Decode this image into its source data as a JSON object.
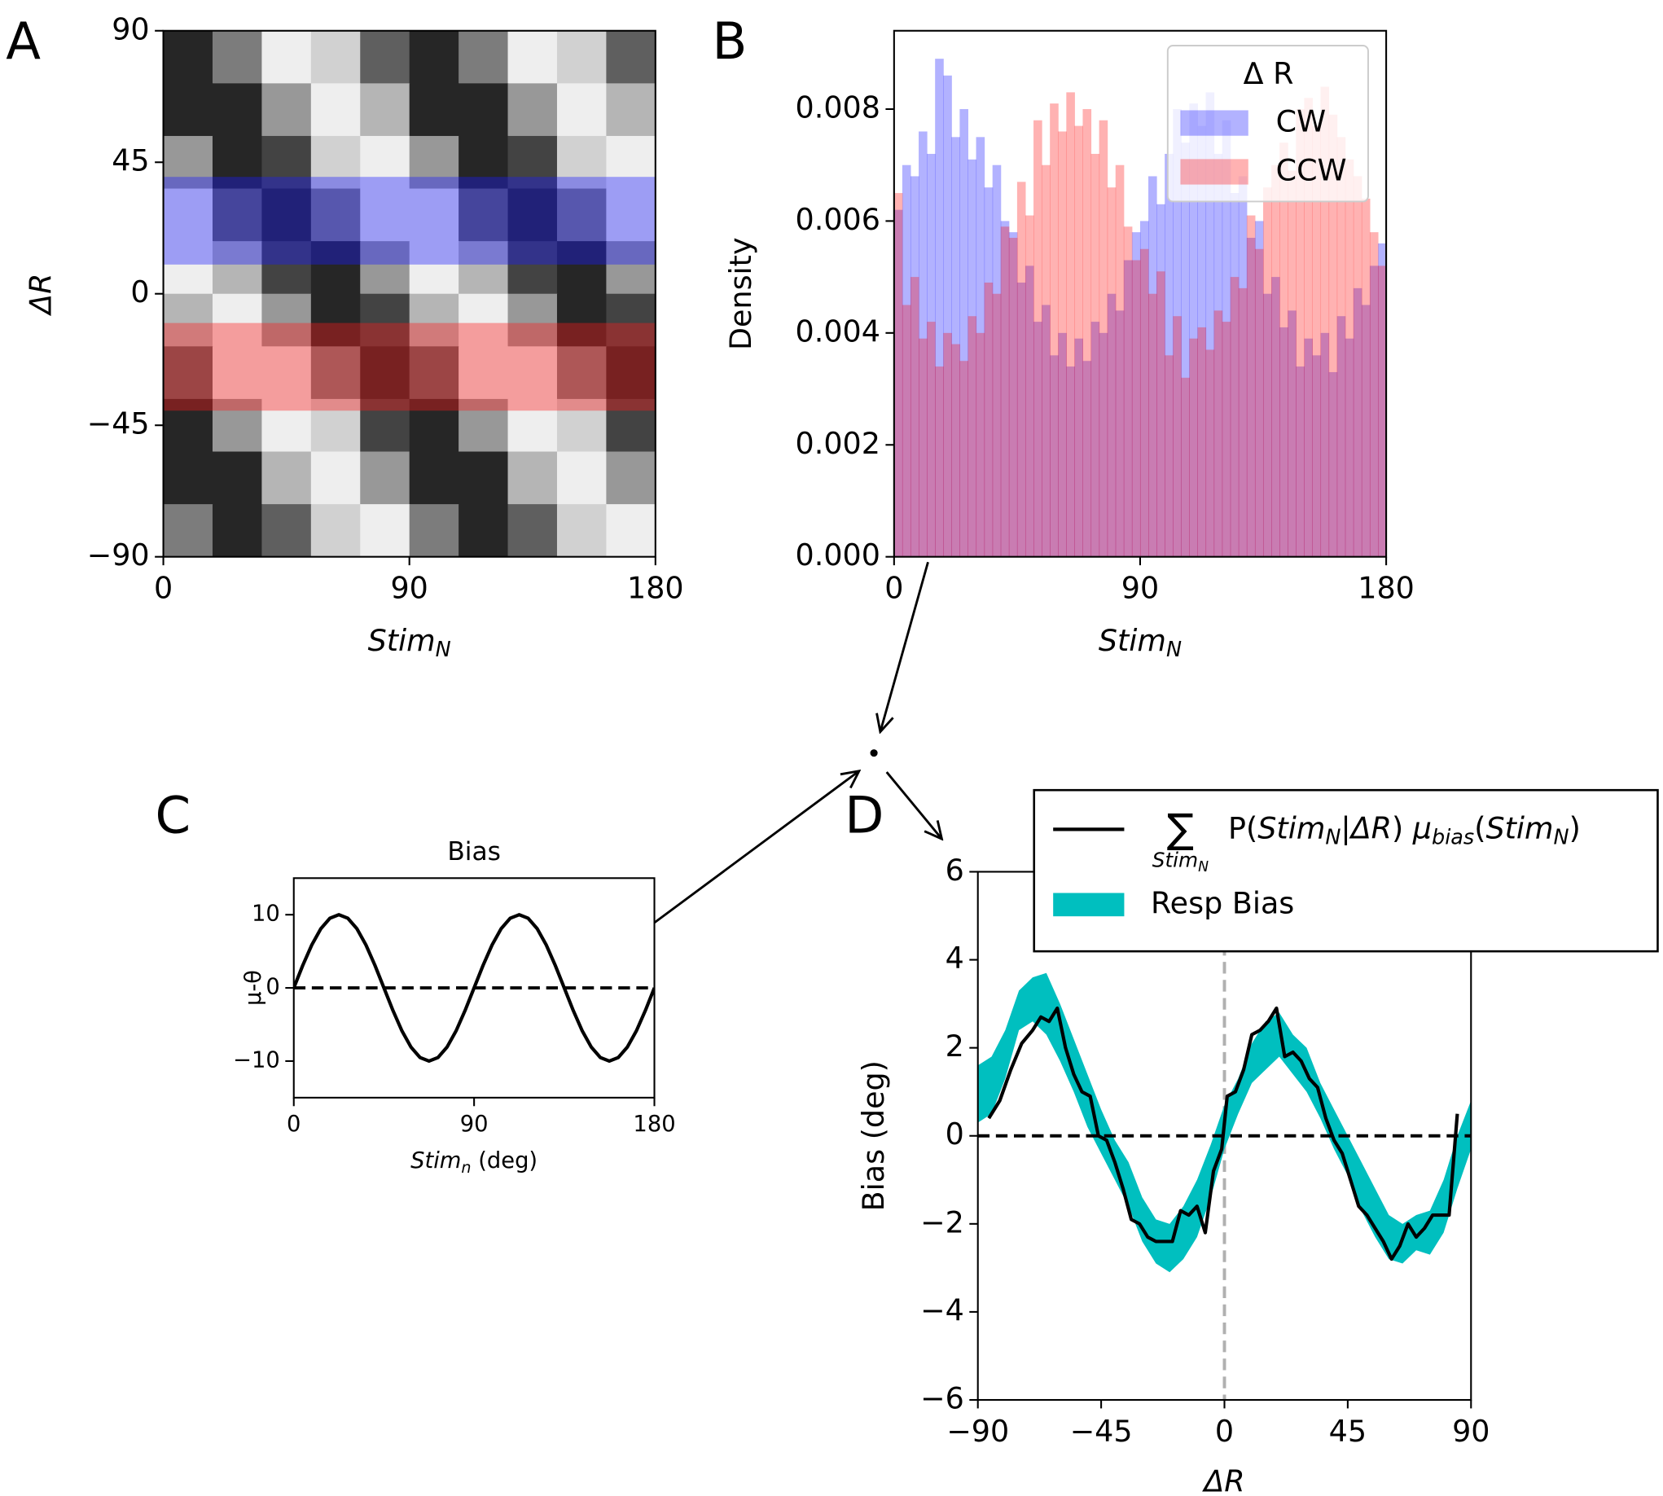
{
  "chart_data": [
    {
      "type": "contour",
      "label": "A",
      "x": [
        9,
        27,
        45,
        63,
        81,
        99,
        117,
        135,
        153,
        171
      ],
      "y": [
        81,
        63,
        45,
        27,
        9,
        -9,
        -27,
        -45,
        -63,
        -81
      ],
      "z": [
        [
          0.01,
          0.44,
          0.95,
          0.84,
          0.26,
          0.01,
          0.44,
          0.95,
          0.84,
          0.26
        ],
        [
          0.12,
          0.08,
          0.62,
          1.0,
          0.68,
          0.12,
          0.08,
          0.62,
          1.0,
          0.68
        ],
        [
          0.5,
          0.02,
          0.21,
          0.79,
          0.98,
          0.5,
          0.02,
          0.21,
          0.79,
          0.98
        ],
        [
          0.89,
          0.32,
          0.0,
          0.38,
          0.92,
          0.89,
          0.32,
          0.0,
          0.38,
          0.92
        ],
        [
          0.99,
          0.74,
          0.16,
          0.05,
          0.56,
          0.99,
          0.74,
          0.16,
          0.05,
          0.56
        ],
        [
          0.74,
          0.99,
          0.56,
          0.05,
          0.16,
          0.74,
          0.99,
          0.56,
          0.05,
          0.16
        ],
        [
          0.32,
          0.89,
          0.92,
          0.38,
          0.0,
          0.32,
          0.89,
          0.92,
          0.38,
          0.0
        ],
        [
          0.02,
          0.5,
          0.98,
          0.79,
          0.21,
          0.02,
          0.5,
          0.98,
          0.79,
          0.21
        ],
        [
          0.08,
          0.12,
          0.68,
          1.0,
          0.62,
          0.08,
          0.12,
          0.68,
          1.0,
          0.62
        ],
        [
          0.44,
          0.01,
          0.26,
          0.84,
          0.95,
          0.44,
          0.01,
          0.26,
          0.84,
          0.95
        ]
      ],
      "bands": [
        {
          "ylim": [
            10,
            40
          ],
          "color": "#1a1aff"
        },
        {
          "ylim": [
            -40,
            -10
          ],
          "color": "#ff1a1a"
        }
      ],
      "xlim": [
        0,
        180
      ],
      "ylim": [
        -90,
        90
      ],
      "xticks": [
        0,
        90,
        180
      ],
      "yticks": [
        {
          "value": -90,
          "label": "−90"
        },
        {
          "value": -45,
          "label": "−45"
        },
        0,
        45,
        90
      ],
      "xlabel": [
        [
          "Stim",
          "i"
        ],
        [
          "N",
          "sub"
        ]
      ],
      "ylabel": "ΔR"
    },
    {
      "type": "histogram",
      "label": "B",
      "bins": [
        0,
        3,
        6,
        9,
        12,
        15,
        18,
        21,
        24,
        27,
        30,
        33,
        36,
        39,
        42,
        45,
        48,
        51,
        54,
        57,
        60,
        63,
        66,
        69,
        72,
        75,
        78,
        81,
        84,
        87,
        90,
        93,
        96,
        99,
        102,
        105,
        108,
        111,
        114,
        117,
        120,
        123,
        126,
        129,
        132,
        135,
        138,
        141,
        144,
        147,
        150,
        153,
        156,
        159,
        162,
        165,
        168,
        171,
        174,
        177,
        180
      ],
      "series": [
        {
          "name": "CW",
          "color": "#0000ff",
          "values": [
            0.0062,
            0.007,
            0.0068,
            0.0076,
            0.0072,
            0.0089,
            0.0086,
            0.0075,
            0.008,
            0.0071,
            0.0075,
            0.0066,
            0.007,
            0.006,
            0.0058,
            0.0049,
            0.0052,
            0.0042,
            0.0045,
            0.0036,
            0.004,
            0.0034,
            0.0039,
            0.0035,
            0.0042,
            0.004,
            0.0047,
            0.0044,
            0.0053,
            0.0058,
            0.006,
            0.0068,
            0.0063,
            0.0072,
            0.008,
            0.0074,
            0.0081,
            0.0077,
            0.0083,
            0.0072,
            0.0078,
            0.0065,
            0.0068,
            0.0057,
            0.006,
            0.0047,
            0.005,
            0.0041,
            0.0044,
            0.0034,
            0.0039,
            0.0036,
            0.004,
            0.0033,
            0.0043,
            0.0039,
            0.0048,
            0.0045,
            0.0052,
            0.0056
          ]
        },
        {
          "name": "CCW",
          "color": "#ff0000",
          "values": [
            0.0065,
            0.0045,
            0.005,
            0.0039,
            0.0042,
            0.0034,
            0.004,
            0.0038,
            0.0035,
            0.0043,
            0.004,
            0.0049,
            0.0047,
            0.0059,
            0.0057,
            0.0067,
            0.0061,
            0.0078,
            0.007,
            0.0081,
            0.0076,
            0.0083,
            0.0077,
            0.008,
            0.0072,
            0.0078,
            0.0066,
            0.007,
            0.0059,
            0.0053,
            0.0055,
            0.0047,
            0.0051,
            0.0036,
            0.0043,
            0.0032,
            0.0039,
            0.0041,
            0.0037,
            0.0044,
            0.0042,
            0.005,
            0.0048,
            0.0061,
            0.0055,
            0.0066,
            0.007,
            0.0074,
            0.0069,
            0.008,
            0.0082,
            0.0077,
            0.0084,
            0.0079,
            0.0075,
            0.0071,
            0.0068,
            0.0064,
            0.0058,
            0.0052
          ]
        }
      ],
      "alpha": 0.3,
      "legend_title": "Δ R",
      "xlim": [
        0,
        180
      ],
      "ylim": [
        0,
        0.0094
      ],
      "xticks": [
        0,
        90,
        180
      ],
      "yticks": [
        {
          "value": 0,
          "label": "0.000"
        },
        {
          "value": 0.002,
          "label": "0.002"
        },
        {
          "value": 0.004,
          "label": "0.004"
        },
        {
          "value": 0.006,
          "label": "0.006"
        },
        {
          "value": 0.008,
          "label": "0.008"
        }
      ],
      "xlabel": [
        [
          "Stim",
          "i"
        ],
        [
          "N",
          "sub"
        ]
      ],
      "ylabel": "Density"
    },
    {
      "type": "line",
      "label": "C",
      "title": "Bias",
      "x": [
        0,
        4.5,
        9,
        13.5,
        18,
        22.5,
        27,
        31.5,
        36,
        40.5,
        45,
        49.5,
        54,
        58.5,
        63,
        67.5,
        72,
        76.5,
        81,
        85.5,
        90,
        94.5,
        99,
        103.5,
        108,
        112.5,
        117,
        121.5,
        126,
        130.5,
        135,
        139.5,
        144,
        148.5,
        153,
        157.5,
        162,
        166.5,
        171,
        175.5,
        180
      ],
      "values": [
        0,
        3.09,
        5.88,
        8.09,
        9.51,
        10,
        9.51,
        8.09,
        5.88,
        3.09,
        0,
        -3.09,
        -5.88,
        -8.09,
        -9.51,
        -10,
        -9.51,
        -8.09,
        -5.88,
        -3.09,
        0,
        3.09,
        5.88,
        8.09,
        9.51,
        10,
        9.51,
        8.09,
        5.88,
        3.09,
        0,
        -3.09,
        -5.88,
        -8.09,
        -9.51,
        -10,
        -9.51,
        -8.09,
        -5.88,
        -3.09,
        0
      ],
      "color": "#000000",
      "hline": 0,
      "hline_color": "#000000",
      "xlim": [
        0,
        180
      ],
      "ylim": [
        -15,
        15
      ],
      "xticks": [
        0,
        90,
        180
      ],
      "yticks": [
        {
          "value": -10,
          "label": "−10"
        },
        0,
        10
      ],
      "xlabel": [
        [
          "Stim",
          "i"
        ],
        [
          "n",
          "sub"
        ],
        [
          " (deg)",
          "normal"
        ]
      ],
      "ylabel": "μ-θ"
    },
    {
      "type": "line",
      "label": "D",
      "series": [
        {
          "kind": "line",
          "color": "#000000",
          "sum": "∑",
          "sum_sub": [
            [
              "Stim",
              "i"
            ],
            [
              "N",
              "sub"
            ]
          ],
          "name": [
            [
              "P(",
              "normal"
            ],
            [
              "Stim",
              "i"
            ],
            [
              "N",
              "sub"
            ],
            [
              "|",
              "normal"
            ],
            [
              "ΔR",
              "i"
            ],
            [
              ") ",
              "normal"
            ],
            [
              "μ",
              "i"
            ],
            [
              "bias",
              "sub"
            ],
            [
              "(",
              "normal"
            ],
            [
              "Stim",
              "i"
            ],
            [
              "N",
              "sub"
            ],
            [
              ")",
              "normal"
            ]
          ],
          "x": [
            -86,
            -82,
            -78,
            -74,
            -70,
            -67,
            -64,
            -61,
            -58,
            -55,
            -52,
            -49,
            -46,
            -43,
            -40,
            -37,
            -34,
            -31,
            -28,
            -25,
            -22,
            -19,
            -16,
            -13,
            -10,
            -7,
            -4,
            -1,
            1,
            4,
            7,
            10,
            13,
            16,
            19,
            22,
            25,
            28,
            31,
            34,
            37,
            40,
            43,
            46,
            49,
            52,
            55,
            58,
            61,
            64,
            67,
            70,
            73,
            76,
            79,
            82,
            85
          ],
          "values": [
            0.4,
            0.8,
            1.5,
            2.1,
            2.4,
            2.7,
            2.6,
            2.9,
            2.0,
            1.4,
            1.0,
            0.9,
            0.0,
            -0.1,
            -0.6,
            -1.2,
            -1.9,
            -2.0,
            -2.3,
            -2.4,
            -2.4,
            -2.4,
            -1.7,
            -1.8,
            -1.6,
            -2.2,
            -0.8,
            -0.3,
            0.9,
            1.0,
            1.5,
            2.3,
            2.4,
            2.6,
            2.9,
            1.8,
            1.9,
            1.7,
            1.3,
            1.1,
            0.4,
            -0.1,
            -0.4,
            -1.0,
            -1.6,
            -1.8,
            -2.1,
            -2.4,
            -2.8,
            -2.5,
            -2.0,
            -2.3,
            -2.1,
            -1.8,
            -1.8,
            -1.8,
            0.5
          ]
        },
        {
          "kind": "band",
          "name": "Resp Bias",
          "color": "#00bfbf",
          "x": [
            -90,
            -85,
            -80,
            -75,
            -70,
            -65,
            -60,
            -55,
            -50,
            -45,
            -40,
            -35,
            -30,
            -25,
            -20,
            -15,
            -10,
            -5,
            0,
            5,
            10,
            15,
            20,
            25,
            30,
            35,
            40,
            45,
            50,
            55,
            60,
            65,
            70,
            75,
            80,
            85,
            90
          ],
          "lower": [
            0.3,
            0.5,
            1.3,
            2.4,
            2.6,
            2.3,
            1.7,
            1.0,
            0.2,
            -0.4,
            -1.0,
            -1.6,
            -2.4,
            -2.9,
            -3.1,
            -2.8,
            -2.3,
            -1.4,
            -0.3,
            0.5,
            1.2,
            1.5,
            1.8,
            1.4,
            1.0,
            0.4,
            -0.3,
            -0.9,
            -1.7,
            -2.3,
            -2.8,
            -2.9,
            -2.6,
            -2.7,
            -2.2,
            -1.2,
            -0.3
          ],
          "upper": [
            1.6,
            1.8,
            2.4,
            3.3,
            3.6,
            3.7,
            3.0,
            2.2,
            1.4,
            0.6,
            -0.1,
            -0.6,
            -1.4,
            -1.9,
            -2.0,
            -1.6,
            -1.0,
            -0.2,
            0.7,
            1.3,
            2.1,
            2.6,
            2.8,
            2.3,
            2.0,
            1.2,
            0.6,
            0.0,
            -0.6,
            -1.2,
            -1.8,
            -2.0,
            -1.8,
            -1.7,
            -1.0,
            0.0,
            0.8
          ]
        }
      ],
      "hline": 0,
      "hline_color": "#000000",
      "vline": 0,
      "vline_color": "#b0b0b0",
      "xlim": [
        -90,
        90
      ],
      "ylim": [
        -6,
        6
      ],
      "xticks": [
        {
          "value": -90,
          "label": "−90"
        },
        {
          "value": -45,
          "label": "−45"
        },
        0,
        45,
        90
      ],
      "yticks": [
        {
          "value": -6,
          "label": "−6"
        },
        {
          "value": -4,
          "label": "−4"
        },
        {
          "value": -2,
          "label": "−2"
        },
        0,
        2,
        4,
        6
      ],
      "xlabel": [
        [
          "ΔR",
          "i"
        ]
      ],
      "ylabel": "Bias (deg)"
    }
  ]
}
